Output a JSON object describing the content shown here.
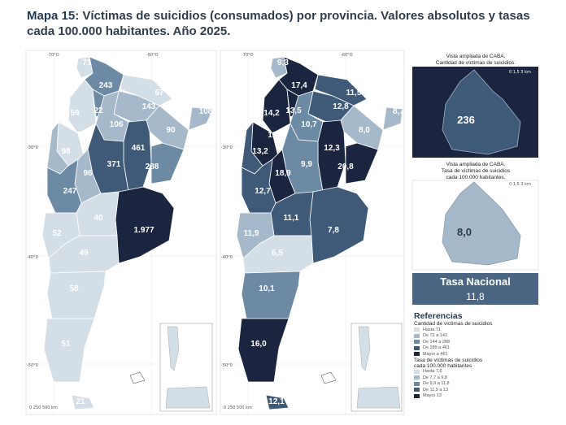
{
  "title": {
    "lead": "Mapa 15:",
    "text": "Víctimas de suicidios (consumados) por provincia. Valores absolutos y tasas cada 100.000 habitantes. Año 2025."
  },
  "colors": {
    "c1": "#d3dee7",
    "c2": "#a6b9cb",
    "c3": "#6d8aa4",
    "c4": "#3f5a78",
    "c5": "#1c2540"
  },
  "coords": {
    "lon70": "-70°O",
    "lon60": "-60°O",
    "lat30": "-30°0",
    "lat40": "-40°0",
    "lat50": "-50°0"
  },
  "map_left": {
    "labels": [
      "71",
      "243",
      "67",
      "143",
      "108",
      "59",
      "22",
      "106",
      "90",
      "50",
      "461",
      "98",
      "371",
      "288",
      "96",
      "247",
      "40",
      "1.977",
      "52",
      "49",
      "58",
      "51",
      "21"
    ]
  },
  "map_right": {
    "labels": [
      "9,3",
      "17,4",
      "11,5",
      "12,8",
      "8,7",
      "14,2",
      "13,5",
      "10,7",
      "8,0",
      "13,1",
      "12,3",
      "13,2",
      "9,9",
      "20,8",
      "18,9",
      "12,7",
      "11,1",
      "7,8",
      "11,9",
      "6,5",
      "10,1",
      "16,0",
      "12,1"
    ]
  },
  "caba_abs": {
    "title_line1": "Vista ampliada de CABA.",
    "title_line2": "Cantidad de víctimas de suicidios.",
    "value": "236"
  },
  "caba_tasa": {
    "title_line1": "Vista ampliada de CABA.",
    "title_line2": "Tasa de víctimas de suicidios",
    "title_line3": "cada 100.000 habitantes.",
    "value": "8,0"
  },
  "tasa_nacional": {
    "label": "Tasa Nacional",
    "value": "11,8"
  },
  "references": {
    "heading": "Referencias",
    "group1_title": "Cantidad de víctimas de suicidios",
    "group1": [
      "Hasta 71",
      "De 72 a 143",
      "De 144 a 288",
      "De 289 a 461",
      "Mayor a 461"
    ],
    "group2_title_line1": "Tasa de víctimas de suicidios",
    "group2_title_line2": "cada 100.000 habitantes",
    "group2": [
      "Hasta 7,6",
      "De 7,7 a 9,8",
      "De 9,9 a 11,8",
      "De 11,9 a 13",
      "Mayor 13"
    ]
  },
  "scale": {
    "left": "0 250 500 km",
    "right": "0 250 500 km",
    "caba": "0 1,5 3 km"
  }
}
